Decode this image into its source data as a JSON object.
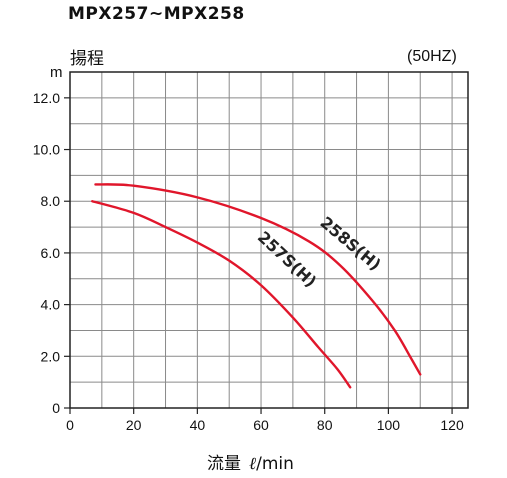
{
  "title": "MPX257~MPX258",
  "y_axis_title": "揚程",
  "y_unit": "m",
  "frequency_label": "(50HZ)",
  "x_axis_title": "流量",
  "x_unit_symbol": "ℓ",
  "x_unit_rest": "/min",
  "chart_data": {
    "type": "line",
    "title": "MPX257~MPX258",
    "xlabel": "流量 ℓ/min",
    "ylabel": "揚程 m",
    "xlim": [
      0,
      125
    ],
    "ylim": [
      0,
      13
    ],
    "grid": true,
    "x_ticks": [
      "0",
      "20",
      "40",
      "60",
      "80",
      "100",
      "120"
    ],
    "y_ticks": [
      "0",
      "2.0",
      "4.0",
      "6.0",
      "8.0",
      "10.0",
      "12.0"
    ],
    "series": [
      {
        "name": "257S(H)",
        "color": "#e0162b",
        "x": [
          7,
          20,
          30,
          40,
          50,
          60,
          70,
          78,
          84,
          88
        ],
        "y": [
          8.0,
          7.55,
          7.0,
          6.4,
          5.7,
          4.75,
          3.5,
          2.35,
          1.5,
          0.8
        ]
      },
      {
        "name": "258S(H)",
        "color": "#e0162b",
        "x": [
          8,
          20,
          40,
          60,
          75,
          85,
          95,
          102,
          107,
          110
        ],
        "y": [
          8.65,
          8.6,
          8.15,
          7.35,
          6.45,
          5.5,
          4.15,
          3.0,
          1.95,
          1.3
        ]
      }
    ]
  }
}
